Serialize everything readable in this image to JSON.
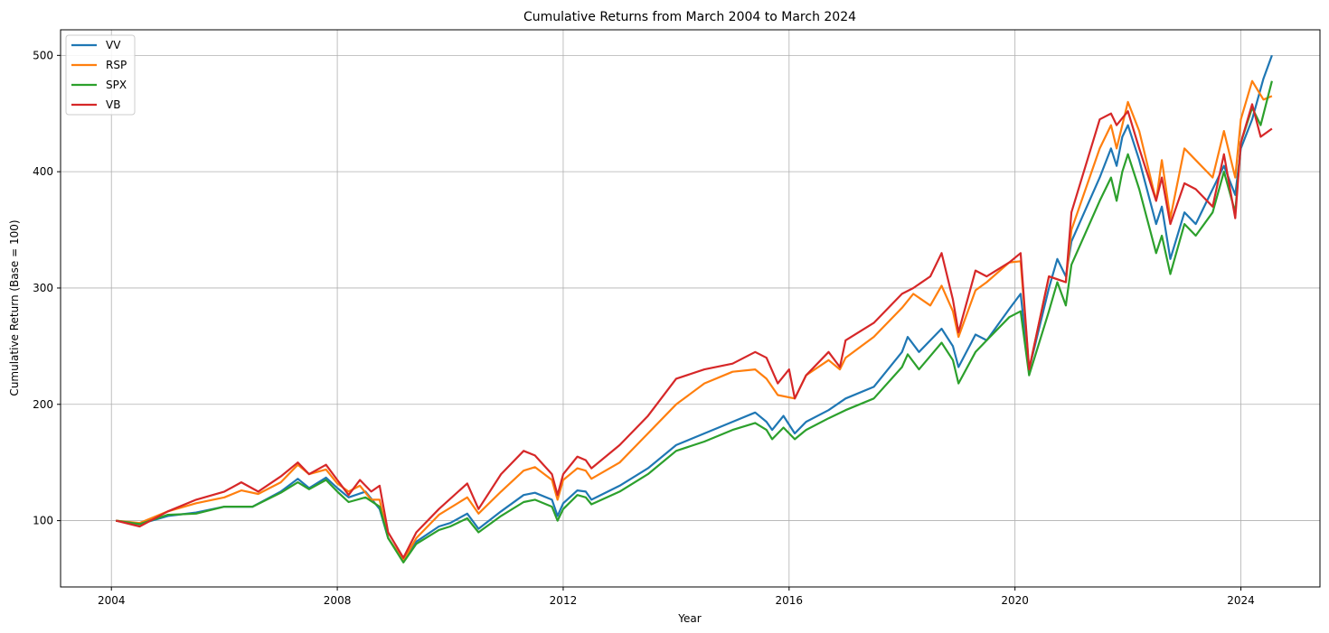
{
  "chart_data": {
    "type": "line",
    "title": "Cumulative Returns from March 2004 to March 2024",
    "xlabel": "Year",
    "ylabel": "Cumulative Return (Base = 100)",
    "xlim": [
      2003.1,
      2025.4
    ],
    "ylim": [
      43,
      522
    ],
    "x_ticks": [
      2004,
      2008,
      2012,
      2016,
      2020,
      2024
    ],
    "x_tick_labels": [
      "2004",
      "2008",
      "2012",
      "2016",
      "2020",
      "2024"
    ],
    "y_ticks": [
      100,
      200,
      300,
      400,
      500
    ],
    "y_tick_labels": [
      "100",
      "200",
      "300",
      "400",
      "500"
    ],
    "grid": true,
    "legend_position": "top-left",
    "series": [
      {
        "name": "VV",
        "color": "#1f77b4",
        "points": [
          [
            2004.08,
            100
          ],
          [
            2004.5,
            97
          ],
          [
            2005.0,
            104
          ],
          [
            2005.5,
            107
          ],
          [
            2006.0,
            112
          ],
          [
            2006.5,
            112
          ],
          [
            2007.0,
            125
          ],
          [
            2007.3,
            136
          ],
          [
            2007.5,
            128
          ],
          [
            2007.8,
            137
          ],
          [
            2008.0,
            128
          ],
          [
            2008.2,
            120
          ],
          [
            2008.5,
            125
          ],
          [
            2008.75,
            110
          ],
          [
            2008.9,
            85
          ],
          [
            2009.17,
            66
          ],
          [
            2009.4,
            82
          ],
          [
            2009.8,
            95
          ],
          [
            2010.0,
            98
          ],
          [
            2010.3,
            106
          ],
          [
            2010.5,
            93
          ],
          [
            2010.9,
            108
          ],
          [
            2011.3,
            122
          ],
          [
            2011.5,
            124
          ],
          [
            2011.8,
            118
          ],
          [
            2011.9,
            104
          ],
          [
            2012.0,
            115
          ],
          [
            2012.25,
            126
          ],
          [
            2012.4,
            125
          ],
          [
            2012.5,
            118
          ],
          [
            2013.0,
            130
          ],
          [
            2013.5,
            145
          ],
          [
            2014.0,
            165
          ],
          [
            2014.5,
            175
          ],
          [
            2015.0,
            185
          ],
          [
            2015.4,
            193
          ],
          [
            2015.6,
            185
          ],
          [
            2015.7,
            178
          ],
          [
            2015.9,
            190
          ],
          [
            2016.1,
            175
          ],
          [
            2016.3,
            185
          ],
          [
            2016.7,
            195
          ],
          [
            2017.0,
            205
          ],
          [
            2017.5,
            215
          ],
          [
            2018.0,
            245
          ],
          [
            2018.1,
            258
          ],
          [
            2018.3,
            245
          ],
          [
            2018.7,
            265
          ],
          [
            2018.9,
            250
          ],
          [
            2019.0,
            232
          ],
          [
            2019.3,
            260
          ],
          [
            2019.5,
            255
          ],
          [
            2019.9,
            282
          ],
          [
            2020.1,
            295
          ],
          [
            2020.25,
            230
          ],
          [
            2020.6,
            300
          ],
          [
            2020.75,
            325
          ],
          [
            2020.9,
            310
          ],
          [
            2021.0,
            340
          ],
          [
            2021.5,
            395
          ],
          [
            2021.7,
            420
          ],
          [
            2021.8,
            405
          ],
          [
            2021.9,
            430
          ],
          [
            2022.0,
            440
          ],
          [
            2022.2,
            410
          ],
          [
            2022.5,
            355
          ],
          [
            2022.6,
            370
          ],
          [
            2022.75,
            325
          ],
          [
            2023.0,
            365
          ],
          [
            2023.2,
            355
          ],
          [
            2023.5,
            385
          ],
          [
            2023.7,
            405
          ],
          [
            2023.9,
            380
          ],
          [
            2024.0,
            420
          ],
          [
            2024.2,
            445
          ],
          [
            2024.4,
            480
          ],
          [
            2024.55,
            500
          ]
        ]
      },
      {
        "name": "RSP",
        "color": "#ff7f0e",
        "points": [
          [
            2004.08,
            100
          ],
          [
            2004.5,
            98
          ],
          [
            2005.0,
            108
          ],
          [
            2005.5,
            115
          ],
          [
            2006.0,
            120
          ],
          [
            2006.3,
            126
          ],
          [
            2006.6,
            123
          ],
          [
            2007.0,
            133
          ],
          [
            2007.3,
            148
          ],
          [
            2007.5,
            140
          ],
          [
            2007.8,
            144
          ],
          [
            2008.0,
            132
          ],
          [
            2008.2,
            125
          ],
          [
            2008.4,
            130
          ],
          [
            2008.6,
            118
          ],
          [
            2008.75,
            118
          ],
          [
            2008.9,
            85
          ],
          [
            2009.17,
            66
          ],
          [
            2009.4,
            85
          ],
          [
            2009.8,
            105
          ],
          [
            2010.3,
            120
          ],
          [
            2010.5,
            106
          ],
          [
            2010.9,
            125
          ],
          [
            2011.3,
            143
          ],
          [
            2011.5,
            146
          ],
          [
            2011.8,
            135
          ],
          [
            2011.9,
            118
          ],
          [
            2012.0,
            135
          ],
          [
            2012.25,
            145
          ],
          [
            2012.4,
            143
          ],
          [
            2012.5,
            136
          ],
          [
            2013.0,
            150
          ],
          [
            2013.5,
            175
          ],
          [
            2014.0,
            200
          ],
          [
            2014.5,
            218
          ],
          [
            2015.0,
            228
          ],
          [
            2015.4,
            230
          ],
          [
            2015.6,
            222
          ],
          [
            2015.8,
            208
          ],
          [
            2016.1,
            205
          ],
          [
            2016.3,
            225
          ],
          [
            2016.7,
            238
          ],
          [
            2016.9,
            230
          ],
          [
            2017.0,
            240
          ],
          [
            2017.5,
            258
          ],
          [
            2018.0,
            283
          ],
          [
            2018.2,
            295
          ],
          [
            2018.5,
            285
          ],
          [
            2018.7,
            302
          ],
          [
            2018.9,
            280
          ],
          [
            2019.0,
            258
          ],
          [
            2019.3,
            298
          ],
          [
            2019.5,
            305
          ],
          [
            2019.9,
            322
          ],
          [
            2020.1,
            323
          ],
          [
            2020.25,
            230
          ],
          [
            2020.6,
            310
          ],
          [
            2020.9,
            305
          ],
          [
            2021.0,
            350
          ],
          [
            2021.5,
            420
          ],
          [
            2021.7,
            440
          ],
          [
            2021.8,
            420
          ],
          [
            2022.0,
            460
          ],
          [
            2022.2,
            435
          ],
          [
            2022.5,
            375
          ],
          [
            2022.6,
            410
          ],
          [
            2022.75,
            360
          ],
          [
            2023.0,
            420
          ],
          [
            2023.2,
            410
          ],
          [
            2023.5,
            395
          ],
          [
            2023.7,
            435
          ],
          [
            2023.9,
            395
          ],
          [
            2024.0,
            445
          ],
          [
            2024.2,
            478
          ],
          [
            2024.4,
            462
          ],
          [
            2024.55,
            465
          ]
        ]
      },
      {
        "name": "SPX",
        "color": "#2ca02c",
        "points": [
          [
            2004.08,
            100
          ],
          [
            2004.5,
            97
          ],
          [
            2005.0,
            105
          ],
          [
            2005.5,
            106
          ],
          [
            2006.0,
            112
          ],
          [
            2006.5,
            112
          ],
          [
            2007.0,
            124
          ],
          [
            2007.3,
            133
          ],
          [
            2007.5,
            127
          ],
          [
            2007.8,
            135
          ],
          [
            2008.0,
            125
          ],
          [
            2008.2,
            116
          ],
          [
            2008.5,
            120
          ],
          [
            2008.75,
            112
          ],
          [
            2008.9,
            85
          ],
          [
            2009.17,
            64
          ],
          [
            2009.4,
            80
          ],
          [
            2009.8,
            92
          ],
          [
            2010.0,
            95
          ],
          [
            2010.3,
            102
          ],
          [
            2010.5,
            90
          ],
          [
            2010.9,
            104
          ],
          [
            2011.3,
            116
          ],
          [
            2011.5,
            118
          ],
          [
            2011.8,
            112
          ],
          [
            2011.9,
            100
          ],
          [
            2012.0,
            110
          ],
          [
            2012.25,
            122
          ],
          [
            2012.4,
            120
          ],
          [
            2012.5,
            114
          ],
          [
            2013.0,
            125
          ],
          [
            2013.5,
            140
          ],
          [
            2014.0,
            160
          ],
          [
            2014.5,
            168
          ],
          [
            2015.0,
            178
          ],
          [
            2015.4,
            184
          ],
          [
            2015.6,
            178
          ],
          [
            2015.7,
            170
          ],
          [
            2015.9,
            180
          ],
          [
            2016.1,
            170
          ],
          [
            2016.3,
            178
          ],
          [
            2016.7,
            188
          ],
          [
            2017.0,
            195
          ],
          [
            2017.5,
            205
          ],
          [
            2018.0,
            232
          ],
          [
            2018.1,
            243
          ],
          [
            2018.3,
            230
          ],
          [
            2018.7,
            253
          ],
          [
            2018.9,
            238
          ],
          [
            2019.0,
            218
          ],
          [
            2019.3,
            245
          ],
          [
            2019.5,
            255
          ],
          [
            2019.9,
            275
          ],
          [
            2020.1,
            280
          ],
          [
            2020.25,
            225
          ],
          [
            2020.6,
            280
          ],
          [
            2020.75,
            305
          ],
          [
            2020.9,
            285
          ],
          [
            2021.0,
            320
          ],
          [
            2021.5,
            375
          ],
          [
            2021.7,
            395
          ],
          [
            2021.8,
            375
          ],
          [
            2021.9,
            400
          ],
          [
            2022.0,
            415
          ],
          [
            2022.2,
            385
          ],
          [
            2022.5,
            330
          ],
          [
            2022.6,
            345
          ],
          [
            2022.75,
            312
          ],
          [
            2023.0,
            355
          ],
          [
            2023.2,
            345
          ],
          [
            2023.5,
            365
          ],
          [
            2023.7,
            400
          ],
          [
            2023.9,
            365
          ],
          [
            2024.0,
            425
          ],
          [
            2024.2,
            455
          ],
          [
            2024.35,
            440
          ],
          [
            2024.55,
            478
          ]
        ]
      },
      {
        "name": "VB",
        "color": "#d62728",
        "points": [
          [
            2004.08,
            100
          ],
          [
            2004.5,
            95
          ],
          [
            2005.0,
            108
          ],
          [
            2005.5,
            118
          ],
          [
            2006.0,
            125
          ],
          [
            2006.3,
            133
          ],
          [
            2006.6,
            125
          ],
          [
            2007.0,
            138
          ],
          [
            2007.3,
            150
          ],
          [
            2007.5,
            140
          ],
          [
            2007.8,
            148
          ],
          [
            2008.0,
            135
          ],
          [
            2008.2,
            122
          ],
          [
            2008.4,
            135
          ],
          [
            2008.6,
            125
          ],
          [
            2008.75,
            130
          ],
          [
            2008.9,
            90
          ],
          [
            2009.17,
            68
          ],
          [
            2009.4,
            90
          ],
          [
            2009.8,
            110
          ],
          [
            2010.3,
            132
          ],
          [
            2010.5,
            110
          ],
          [
            2010.9,
            140
          ],
          [
            2011.3,
            160
          ],
          [
            2011.5,
            156
          ],
          [
            2011.8,
            140
          ],
          [
            2011.9,
            122
          ],
          [
            2012.0,
            140
          ],
          [
            2012.25,
            155
          ],
          [
            2012.4,
            152
          ],
          [
            2012.5,
            145
          ],
          [
            2013.0,
            165
          ],
          [
            2013.5,
            190
          ],
          [
            2014.0,
            222
          ],
          [
            2014.5,
            230
          ],
          [
            2015.0,
            235
          ],
          [
            2015.4,
            245
          ],
          [
            2015.6,
            240
          ],
          [
            2015.8,
            218
          ],
          [
            2016.0,
            230
          ],
          [
            2016.1,
            205
          ],
          [
            2016.3,
            225
          ],
          [
            2016.7,
            245
          ],
          [
            2016.9,
            232
          ],
          [
            2017.0,
            255
          ],
          [
            2017.5,
            270
          ],
          [
            2018.0,
            295
          ],
          [
            2018.2,
            300
          ],
          [
            2018.5,
            310
          ],
          [
            2018.7,
            330
          ],
          [
            2018.9,
            290
          ],
          [
            2019.0,
            262
          ],
          [
            2019.3,
            315
          ],
          [
            2019.5,
            310
          ],
          [
            2019.9,
            322
          ],
          [
            2020.1,
            330
          ],
          [
            2020.25,
            230
          ],
          [
            2020.6,
            310
          ],
          [
            2020.9,
            305
          ],
          [
            2021.0,
            365
          ],
          [
            2021.5,
            445
          ],
          [
            2021.7,
            450
          ],
          [
            2021.8,
            440
          ],
          [
            2022.0,
            452
          ],
          [
            2022.2,
            420
          ],
          [
            2022.5,
            375
          ],
          [
            2022.6,
            395
          ],
          [
            2022.75,
            355
          ],
          [
            2023.0,
            390
          ],
          [
            2023.2,
            385
          ],
          [
            2023.5,
            370
          ],
          [
            2023.7,
            415
          ],
          [
            2023.9,
            360
          ],
          [
            2024.0,
            425
          ],
          [
            2024.2,
            458
          ],
          [
            2024.35,
            430
          ],
          [
            2024.55,
            437
          ]
        ]
      }
    ]
  }
}
